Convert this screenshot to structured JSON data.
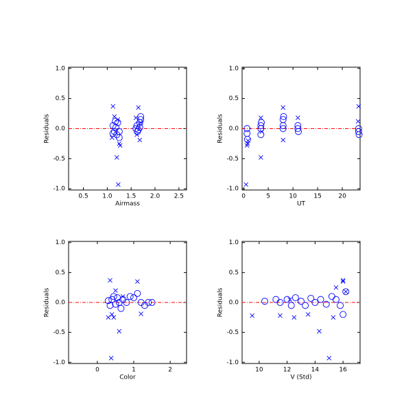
{
  "chart_data": [
    {
      "type": "scatter",
      "xlabel": "Airmass",
      "ylabel": "Residuals",
      "xlim": [
        0.19,
        2.66
      ],
      "xticks": [
        0.5,
        {
          "value": 1,
          "label": "1.0"
        },
        1.5,
        {
          "value": 2,
          "label": "2.0"
        },
        2.5
      ],
      "ylim": [
        -1.02,
        1.02
      ],
      "yticks": [
        {
          "value": -1,
          "label": "-1.0"
        },
        -0.5,
        {
          "value": 0,
          "label": "0.0"
        },
        0.5,
        {
          "value": 1,
          "label": "1.0"
        }
      ],
      "ref_line": {
        "y": 0,
        "color": "#ff0000"
      },
      "series": [
        {
          "marker": "o",
          "color": "#0000ff",
          "x": [
            1.12,
            1.15,
            1.18,
            1.2,
            1.22,
            1.12,
            1.17,
            1.25,
            1.25,
            1.6,
            1.62,
            1.65,
            1.68,
            1.7,
            1.63,
            1.68,
            1.7
          ],
          "values": [
            0.05,
            -0.05,
            0.02,
            -0.1,
            0.1,
            -0.08,
            0.12,
            -0.15,
            -0.05,
            0,
            0.05,
            -0.02,
            0.1,
            0.15,
            -0.05,
            0.02,
            0.2
          ]
        },
        {
          "marker": "x",
          "color": "#0000ff",
          "x": [
            1.12,
            1.2,
            1.23,
            1.15,
            1.25,
            1.27,
            1.1,
            1.22,
            1.65,
            1.68,
            1.6,
            1.7,
            1.62
          ],
          "values": [
            0.37,
            -0.48,
            -0.93,
            0.2,
            -0.25,
            -0.28,
            -0.15,
            0.15,
            0.35,
            -0.19,
            0.18,
            0.1,
            -0.1
          ]
        }
      ]
    },
    {
      "type": "scatter",
      "xlabel": "UT",
      "ylabel": "Residuals",
      "xlim": [
        -0.3,
        23.6
      ],
      "xticks": [
        0,
        5,
        10,
        15,
        20
      ],
      "ylim": [
        -1.02,
        1.02
      ],
      "yticks": [
        {
          "value": -1,
          "label": "-1.0"
        },
        -0.5,
        {
          "value": 0,
          "label": "0.0"
        },
        0.5,
        {
          "value": 1,
          "label": "1.0"
        }
      ],
      "ref_line": {
        "y": 0,
        "color": "#ff0000"
      },
      "series": [
        {
          "marker": "o",
          "color": "#0000ff",
          "x": [
            0.7,
            0.7,
            0.8,
            3.5,
            3.5,
            3.5,
            3.6,
            8,
            8,
            8.1,
            8,
            11,
            11,
            11.1,
            23.3,
            23.3,
            23.4
          ],
          "values": [
            0,
            -0.08,
            -0.18,
            0,
            0.05,
            -0.1,
            0.1,
            0.05,
            0.15,
            0.2,
            0,
            0,
            0.05,
            -0.05,
            -0.05,
            0,
            -0.1
          ]
        },
        {
          "marker": "x",
          "color": "#0000ff",
          "x": [
            0.7,
            0.8,
            0.5,
            3.5,
            3.5,
            8,
            8,
            11,
            23.3,
            23.2,
            0.9,
            3.7
          ],
          "values": [
            -0.28,
            -0.25,
            -0.93,
            -0.48,
            0.18,
            0.35,
            -0.19,
            0.18,
            0.37,
            0.12,
            -0.2,
            -0.05
          ]
        }
      ]
    },
    {
      "type": "scatter",
      "xlabel": "Color",
      "ylabel": "Residuals",
      "xlim": [
        -0.79,
        2.45
      ],
      "xticks": [
        0,
        1,
        2
      ],
      "ylim": [
        -1.02,
        1.02
      ],
      "yticks": [
        {
          "value": -1,
          "label": "-1.0"
        },
        -0.5,
        {
          "value": 0,
          "label": "0.0"
        },
        0.5,
        {
          "value": 1,
          "label": "1.0"
        }
      ],
      "ref_line": {
        "y": 0,
        "color": "#ff0000"
      },
      "series": [
        {
          "marker": "o",
          "color": "#0000ff",
          "x": [
            0.3,
            0.35,
            0.4,
            0.45,
            0.5,
            0.55,
            0.6,
            0.65,
            0.7,
            0.8,
            0.9,
            1.0,
            1.1,
            1.2,
            1.3,
            1.4,
            1.5
          ],
          "values": [
            0.03,
            -0.05,
            0.05,
            0.1,
            -0.03,
            0.08,
            0,
            -0.1,
            0.05,
            0,
            0.1,
            0.08,
            0.15,
            0,
            -0.05,
            0,
            0
          ]
        },
        {
          "marker": "x",
          "color": "#0000ff",
          "x": [
            0.35,
            0.3,
            0.38,
            0.6,
            0.4,
            0.5,
            1.1,
            1.2,
            0.45,
            0.7
          ],
          "values": [
            0.37,
            -0.25,
            -0.93,
            -0.48,
            -0.2,
            0.2,
            0.35,
            -0.19,
            -0.25,
            0.1
          ]
        }
      ]
    },
    {
      "type": "scatter",
      "xlabel": "V (Std)",
      "ylabel": "Residuals",
      "xlim": [
        8.78,
        17.22
      ],
      "xticks": [
        10,
        12,
        14,
        16
      ],
      "ylim": [
        -1.02,
        1.02
      ],
      "yticks": [
        {
          "value": -1,
          "label": "-1.0"
        },
        -0.5,
        {
          "value": 0,
          "label": "0.0"
        },
        0.5,
        {
          "value": 1,
          "label": "1.0"
        }
      ],
      "ref_line": {
        "y": 0,
        "color": "#ff0000"
      },
      "series": [
        {
          "marker": "o",
          "color": "#0000ff",
          "x": [
            10.4,
            11.2,
            11.5,
            12,
            12.3,
            12.6,
            13,
            13.3,
            13.7,
            14,
            14.4,
            14.8,
            15.2,
            15.5,
            15.8,
            16,
            16.2
          ],
          "values": [
            0.02,
            0.05,
            0,
            0.05,
            -0.05,
            0.08,
            0.02,
            -0.05,
            0.07,
            0,
            0.05,
            -0.03,
            0.1,
            0.05,
            -0.05,
            -0.2,
            0.18
          ]
        },
        {
          "marker": "x",
          "color": "#0000ff",
          "x": [
            9.5,
            11.5,
            12.5,
            13.5,
            14.3,
            15,
            15.5,
            16,
            16,
            15.3,
            12.2,
            16.2
          ],
          "values": [
            -0.22,
            -0.22,
            -0.25,
            -0.2,
            -0.48,
            -0.93,
            0.25,
            0.37,
            0.35,
            -0.25,
            0.05,
            0.18
          ]
        }
      ]
    }
  ]
}
